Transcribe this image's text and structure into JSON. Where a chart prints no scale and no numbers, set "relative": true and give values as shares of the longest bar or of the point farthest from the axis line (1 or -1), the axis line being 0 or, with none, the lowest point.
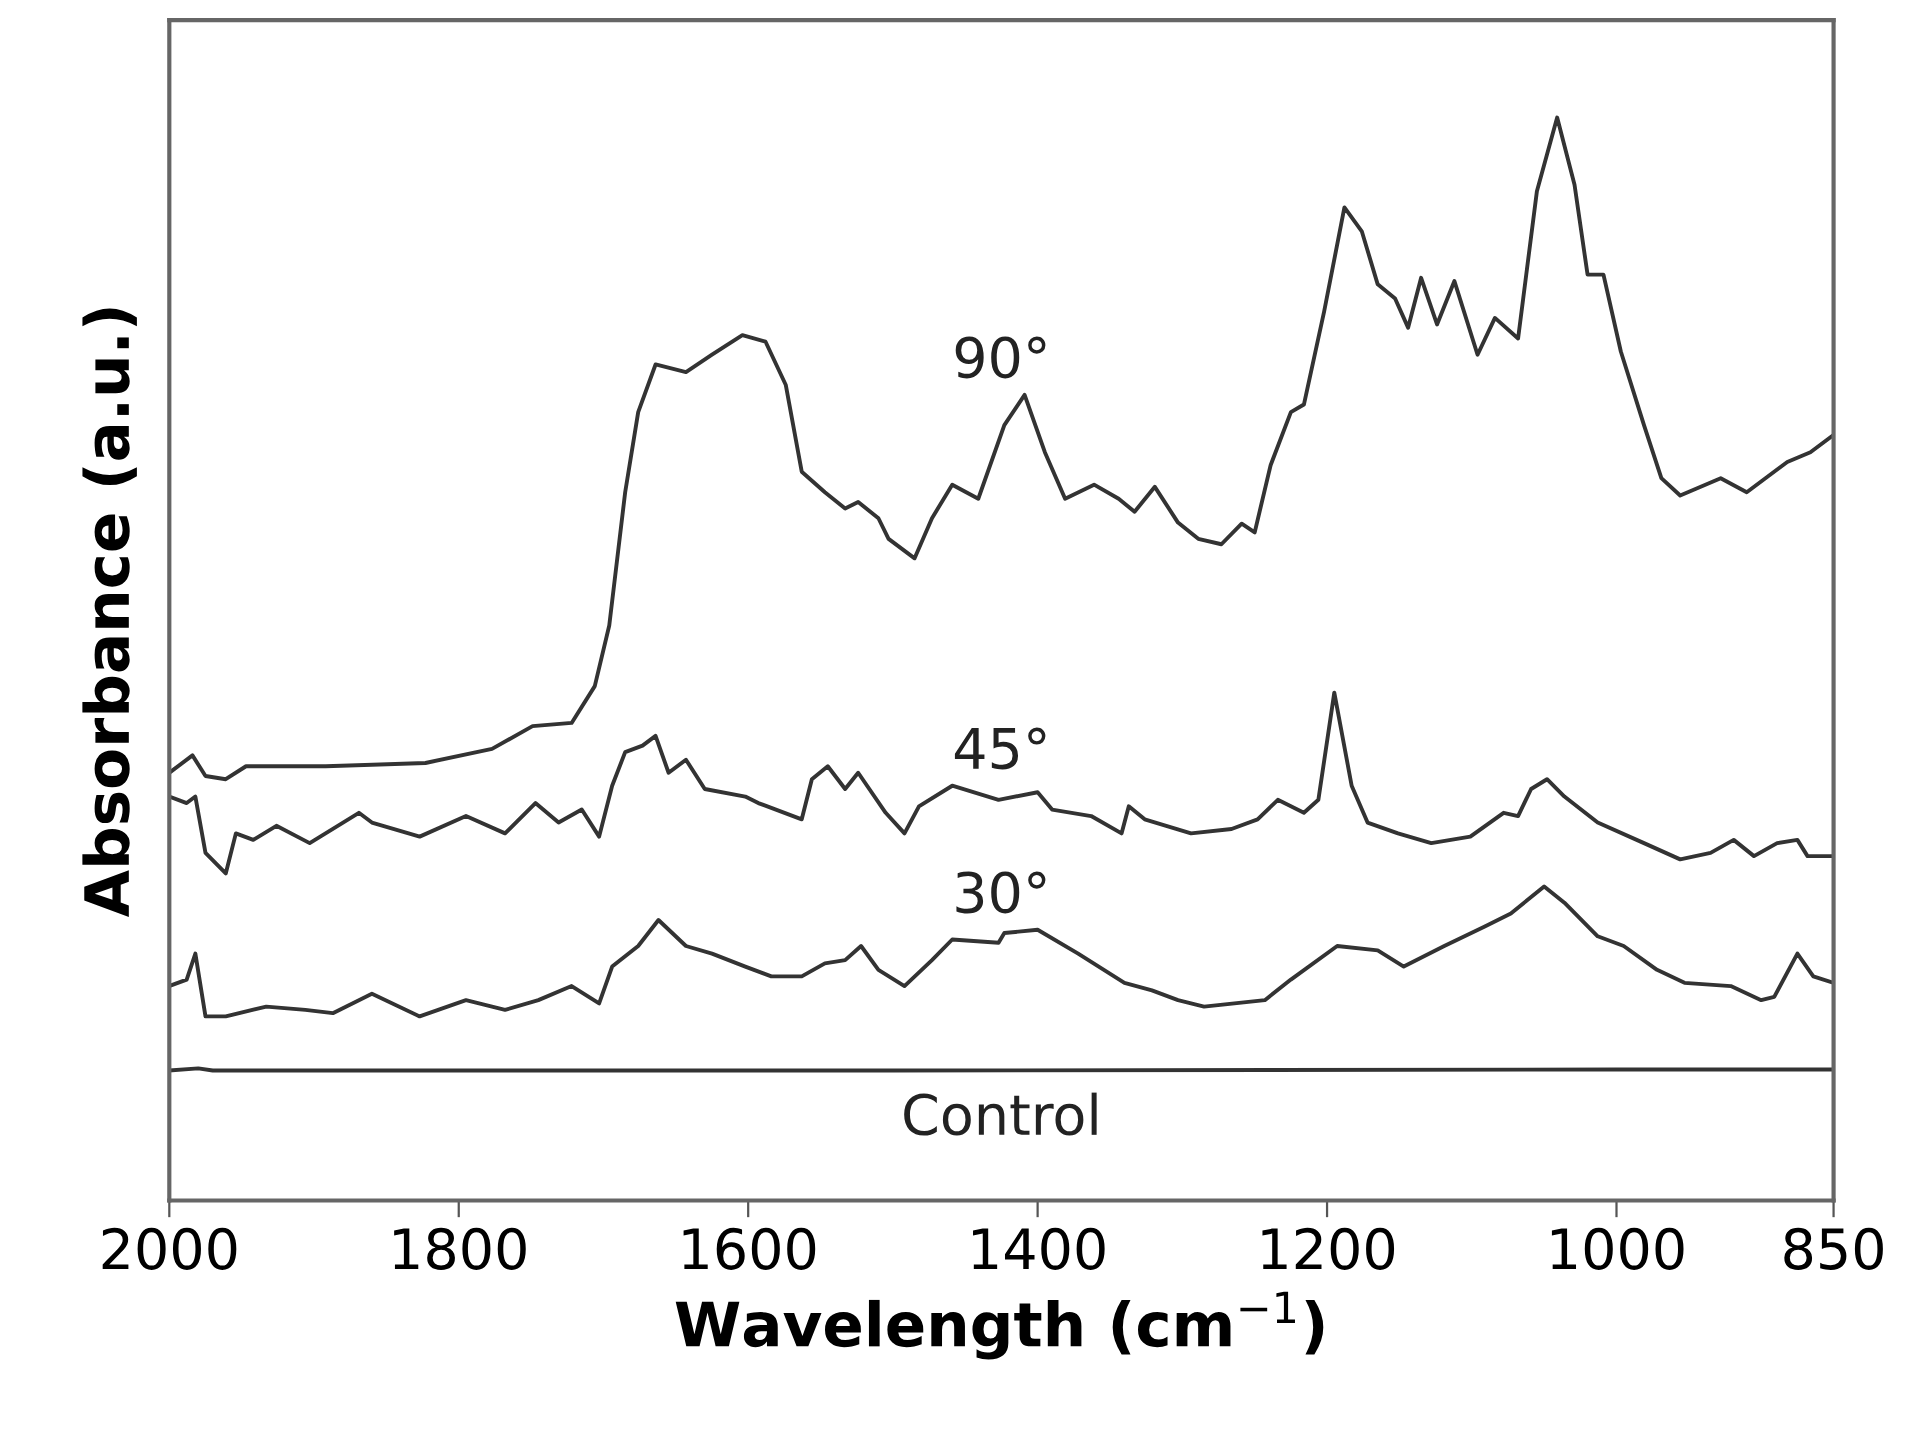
{
  "chart_data": {
    "type": "line",
    "relative": true,
    "xlabel": "Wavelength (cm$^{−1}$)",
    "ylabel": "Absorbance (a.u.)",
    "xlim": [
      2000,
      850
    ],
    "xticks": [
      2000,
      1800,
      1600,
      1400,
      1200,
      1000,
      850
    ],
    "grid": false,
    "legend": false,
    "marker": "none",
    "line_style": "solid",
    "series": [
      {
        "name": "90°",
        "color": "#333333",
        "x": [
          2000,
          1984,
          1975,
          1961,
          1947,
          1892,
          1823,
          1777,
          1749,
          1722,
          1706,
          1696,
          1685,
          1676,
          1664,
          1643,
          1625,
          1604,
          1588,
          1574,
          1563,
          1547,
          1533,
          1524,
          1510,
          1503,
          1485,
          1473,
          1459,
          1441,
          1423,
          1409,
          1395,
          1381,
          1361,
          1344,
          1333,
          1319,
          1303,
          1289,
          1273,
          1259,
          1250,
          1239,
          1225,
          1216,
          1202,
          1188,
          1176,
          1165,
          1153,
          1144,
          1135,
          1124,
          1112,
          1096,
          1084,
          1068,
          1055,
          1041,
          1029,
          1020,
          1009,
          997,
          981,
          969,
          956,
          928,
          910,
          882,
          866,
          850
        ],
        "values": [
          0.395,
          0.411,
          0.392,
          0.389,
          0.401,
          0.401,
          0.404,
          0.417,
          0.438,
          0.441,
          0.475,
          0.531,
          0.654,
          0.728,
          0.772,
          0.765,
          0.781,
          0.799,
          0.793,
          0.753,
          0.673,
          0.654,
          0.639,
          0.645,
          0.63,
          0.611,
          0.593,
          0.63,
          0.661,
          0.648,
          0.716,
          0.744,
          0.691,
          0.648,
          0.661,
          0.648,
          0.636,
          0.659,
          0.626,
          0.611,
          0.606,
          0.625,
          0.617,
          0.679,
          0.728,
          0.735,
          0.821,
          0.917,
          0.895,
          0.846,
          0.833,
          0.806,
          0.852,
          0.809,
          0.849,
          0.781,
          0.815,
          0.796,
          0.932,
          1.0,
          0.938,
          0.855,
          0.855,
          0.784,
          0.716,
          0.667,
          0.651,
          0.667,
          0.654,
          0.682,
          0.691,
          0.707
        ]
      },
      {
        "name": "45°",
        "color": "#333333",
        "x": [
          2000,
          1988,
          1982,
          1975,
          1961,
          1954,
          1942,
          1926,
          1903,
          1869,
          1860,
          1827,
          1795,
          1768,
          1747,
          1731,
          1715,
          1703,
          1694,
          1685,
          1673,
          1664,
          1655,
          1643,
          1630,
          1602,
          1593,
          1563,
          1556,
          1545,
          1533,
          1524,
          1505,
          1492,
          1482,
          1459,
          1427,
          1400,
          1390,
          1363,
          1342,
          1337,
          1326,
          1294,
          1266,
          1248,
          1234,
          1216,
          1206,
          1195,
          1183,
          1172,
          1151,
          1128,
          1101,
          1078,
          1068,
          1059,
          1048,
          1036,
          1013,
          981,
          956,
          935,
          919,
          905,
          889,
          875,
          868,
          850
        ],
        "values": [
          0.373,
          0.367,
          0.373,
          0.321,
          0.302,
          0.339,
          0.333,
          0.346,
          0.33,
          0.358,
          0.349,
          0.336,
          0.355,
          0.339,
          0.367,
          0.349,
          0.361,
          0.336,
          0.383,
          0.414,
          0.42,
          0.429,
          0.395,
          0.407,
          0.38,
          0.373,
          0.367,
          0.352,
          0.389,
          0.401,
          0.38,
          0.395,
          0.358,
          0.339,
          0.364,
          0.383,
          0.37,
          0.377,
          0.361,
          0.355,
          0.339,
          0.364,
          0.352,
          0.339,
          0.343,
          0.352,
          0.37,
          0.358,
          0.37,
          0.469,
          0.383,
          0.349,
          0.339,
          0.33,
          0.336,
          0.358,
          0.355,
          0.38,
          0.389,
          0.373,
          0.349,
          0.33,
          0.315,
          0.321,
          0.333,
          0.318,
          0.33,
          0.333,
          0.318,
          0.318
        ]
      },
      {
        "name": "30°",
        "color": "#333333",
        "x": [
          2000,
          1988,
          1982,
          1975,
          1961,
          1933,
          1906,
          1887,
          1860,
          1827,
          1795,
          1768,
          1745,
          1722,
          1703,
          1694,
          1676,
          1662,
          1643,
          1625,
          1602,
          1584,
          1563,
          1547,
          1533,
          1522,
          1510,
          1492,
          1473,
          1459,
          1427,
          1423,
          1400,
          1372,
          1340,
          1321,
          1303,
          1285,
          1243,
          1225,
          1193,
          1165,
          1147,
          1119,
          1091,
          1073,
          1050,
          1036,
          1013,
          995,
          972,
          953,
          921,
          900,
          891,
          875,
          864,
          850
        ],
        "values": [
          0.198,
          0.204,
          0.228,
          0.17,
          0.17,
          0.179,
          0.176,
          0.173,
          0.191,
          0.17,
          0.185,
          0.176,
          0.185,
          0.198,
          0.182,
          0.216,
          0.235,
          0.259,
          0.235,
          0.228,
          0.216,
          0.207,
          0.207,
          0.219,
          0.222,
          0.235,
          0.213,
          0.198,
          0.222,
          0.241,
          0.238,
          0.247,
          0.25,
          0.228,
          0.201,
          0.194,
          0.185,
          0.179,
          0.185,
          0.204,
          0.235,
          0.231,
          0.216,
          0.235,
          0.253,
          0.265,
          0.29,
          0.275,
          0.244,
          0.235,
          0.213,
          0.201,
          0.198,
          0.185,
          0.188,
          0.228,
          0.207,
          0.201
        ]
      },
      {
        "name": "Control",
        "color": "#333333",
        "x": [
          2000,
          1980,
          1970,
          1500,
          1000,
          850
        ],
        "values": [
          0.12,
          0.122,
          0.12,
          0.12,
          0.121,
          0.121
        ]
      }
    ]
  }
}
